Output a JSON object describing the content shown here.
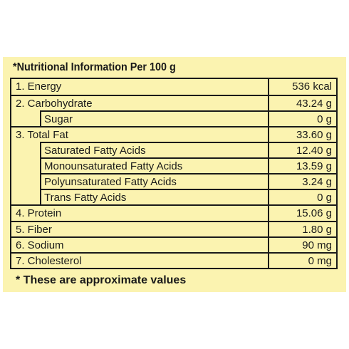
{
  "title": "*Nutritional Information Per 100 g",
  "rows": [
    {
      "name": "1. Energy",
      "value": "536 kcal",
      "sub": false
    },
    {
      "name": "2. Carbohydrate",
      "value": "43.24 g",
      "sub": false
    },
    {
      "name": "Sugar",
      "value": "0 g",
      "sub": true
    },
    {
      "name": "3. Total Fat",
      "value": "33.60 g",
      "sub": false
    },
    {
      "name": "Saturated Fatty Acids",
      "value": "12.40 g",
      "sub": true
    },
    {
      "name": "Monounsaturated Fatty Acids",
      "value": "13.59 g",
      "sub": true
    },
    {
      "name": "Polyunsaturated Fatty Acids",
      "value": "3.24 g",
      "sub": true
    },
    {
      "name": "Trans Fatty Acids",
      "value": "0 g",
      "sub": true
    },
    {
      "name": "4. Protein",
      "value": "15.06 g",
      "sub": false
    },
    {
      "name": "5. Fiber",
      "value": "1.80 g",
      "sub": false
    },
    {
      "name": "6. Sodium",
      "value": "90 mg",
      "sub": false
    },
    {
      "name": "7. Cholesterol",
      "value": "0 mg",
      "sub": false
    }
  ],
  "footnote": "* These are approximate values",
  "colors": {
    "panel": "#fbf3b0",
    "lines": "#1a1a1a"
  }
}
